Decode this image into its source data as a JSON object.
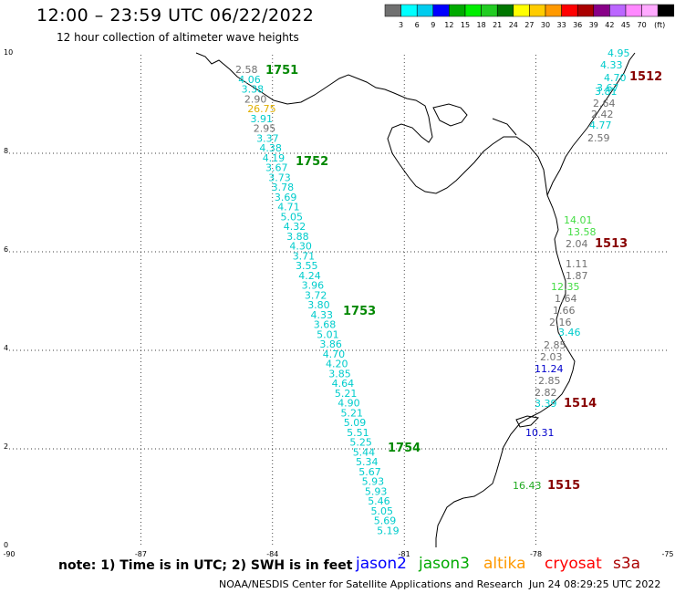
{
  "title": "12:00 – 23:59 UTC 06/22/2022",
  "subtitle": "12 hour collection of altimeter wave heights",
  "legend": {
    "values": [
      "3",
      "6",
      "9",
      "12",
      "15",
      "18",
      "21",
      "24",
      "27",
      "30",
      "33",
      "36",
      "39",
      "42",
      "45",
      "70"
    ],
    "unit": "(ft)",
    "colors": [
      "#707070",
      "#00ffff",
      "#00ccee",
      "#0000ff",
      "#00aa00",
      "#00ee00",
      "#22cc22",
      "#007700",
      "#ffff00",
      "#ffcc00",
      "#ff9900",
      "#ff0000",
      "#aa0000",
      "#880088",
      "#bb66ff",
      "#ff88ff",
      "#ffaaff",
      "#000000"
    ]
  },
  "axes": {
    "x_ticks": [
      "-90",
      "-87",
      "-84",
      "-81",
      "-78",
      "-75"
    ],
    "y_ticks": [
      "10",
      "8",
      "6",
      "4",
      "2",
      "0"
    ]
  },
  "passes": [
    {
      "label": "1751",
      "color": "#008800"
    },
    {
      "label": "1752",
      "color": "#008800"
    },
    {
      "label": "1753",
      "color": "#008800"
    },
    {
      "label": "1754",
      "color": "#008800"
    },
    {
      "label": "1512",
      "color": "#880000"
    },
    {
      "label": "1513",
      "color": "#880000"
    },
    {
      "label": "1514",
      "color": "#880000"
    },
    {
      "label": "1515",
      "color": "#880000"
    }
  ],
  "tracks": {
    "west": [
      {
        "v": "2.58",
        "c": "#707070"
      },
      {
        "v": "4.06",
        "c": "#00cccc"
      },
      {
        "v": "3.38",
        "c": "#00cccc"
      },
      {
        "v": "2.90",
        "c": "#707070"
      },
      {
        "v": "26.75",
        "c": "#e0b000"
      },
      {
        "v": "3.91",
        "c": "#00cccc"
      },
      {
        "v": "2.95",
        "c": "#707070"
      },
      {
        "v": "3.37",
        "c": "#00cccc"
      },
      {
        "v": "4.38",
        "c": "#00cccc"
      },
      {
        "v": "4.19",
        "c": "#00cccc"
      },
      {
        "v": "3.67",
        "c": "#00cccc"
      },
      {
        "v": "3.73",
        "c": "#00cccc"
      },
      {
        "v": "3.78",
        "c": "#00cccc"
      },
      {
        "v": "3.69",
        "c": "#00cccc"
      },
      {
        "v": "4.71",
        "c": "#00cccc"
      },
      {
        "v": "5.05",
        "c": "#00cccc"
      },
      {
        "v": "4.32",
        "c": "#00cccc"
      },
      {
        "v": "3.88",
        "c": "#00cccc"
      },
      {
        "v": "4.30",
        "c": "#00cccc"
      },
      {
        "v": "3.71",
        "c": "#00cccc"
      },
      {
        "v": "3.55",
        "c": "#00cccc"
      },
      {
        "v": "4.24",
        "c": "#00cccc"
      },
      {
        "v": "3.96",
        "c": "#00cccc"
      },
      {
        "v": "3.72",
        "c": "#00cccc"
      },
      {
        "v": "3.80",
        "c": "#00cccc"
      },
      {
        "v": "4.33",
        "c": "#00cccc"
      },
      {
        "v": "3.68",
        "c": "#00cccc"
      },
      {
        "v": "5.01",
        "c": "#00cccc"
      },
      {
        "v": "3.86",
        "c": "#00cccc"
      },
      {
        "v": "4.70",
        "c": "#00cccc"
      },
      {
        "v": "4.20",
        "c": "#00cccc"
      },
      {
        "v": "3.85",
        "c": "#00cccc"
      },
      {
        "v": "4.64",
        "c": "#00cccc"
      },
      {
        "v": "5.21",
        "c": "#00cccc"
      },
      {
        "v": "4.90",
        "c": "#00cccc"
      },
      {
        "v": "5.21",
        "c": "#00cccc"
      },
      {
        "v": "5.09",
        "c": "#00cccc"
      },
      {
        "v": "5.51",
        "c": "#00cccc"
      },
      {
        "v": "5.25",
        "c": "#00cccc"
      },
      {
        "v": "5.44",
        "c": "#00cccc"
      },
      {
        "v": "5.34",
        "c": "#00cccc"
      },
      {
        "v": "5.67",
        "c": "#00cccc"
      },
      {
        "v": "5.93",
        "c": "#00cccc"
      },
      {
        "v": "5.93",
        "c": "#00cccc"
      },
      {
        "v": "5.46",
        "c": "#00cccc"
      },
      {
        "v": "5.05",
        "c": "#00cccc"
      },
      {
        "v": "5.69",
        "c": "#00cccc"
      },
      {
        "v": "5.19",
        "c": "#00cccc"
      }
    ],
    "east_top": [
      {
        "v": "4.95",
        "c": "#00cccc"
      },
      {
        "v": "4.33",
        "c": "#00cccc"
      },
      {
        "v": "4.70",
        "c": "#00cccc"
      },
      {
        "v": "3.67",
        "c": "#00cccc"
      },
      {
        "v": "3.81",
        "c": "#00cccc"
      },
      {
        "v": "2.64",
        "c": "#707070"
      },
      {
        "v": "2.42",
        "c": "#707070"
      },
      {
        "v": "4.77",
        "c": "#00cccc"
      },
      {
        "v": "2.59",
        "c": "#707070"
      }
    ],
    "east_mid": [
      {
        "v": "14.01",
        "c": "#44dd44"
      },
      {
        "v": "13.58",
        "c": "#44dd44"
      },
      {
        "v": "2.04",
        "c": "#707070"
      },
      {
        "v": "1.11",
        "c": "#707070"
      },
      {
        "v": "1.87",
        "c": "#707070"
      },
      {
        "v": "12.35",
        "c": "#44dd44"
      },
      {
        "v": "1.64",
        "c": "#707070"
      },
      {
        "v": "1.66",
        "c": "#707070"
      },
      {
        "v": "2.16",
        "c": "#707070"
      },
      {
        "v": "3.46",
        "c": "#00cccc"
      },
      {
        "v": "2.85",
        "c": "#707070"
      },
      {
        "v": "2.03",
        "c": "#707070"
      },
      {
        "v": "11.24",
        "c": "#0000cc"
      },
      {
        "v": "2.85",
        "c": "#707070"
      },
      {
        "v": "2.82",
        "c": "#707070"
      },
      {
        "v": "3.39",
        "c": "#00cccc"
      },
      {
        "v": "10.31",
        "c": "#0000cc"
      },
      {
        "v": "16.43",
        "c": "#22aa22"
      }
    ]
  },
  "note": "note: 1) Time is in UTC; 2) SWH is in feet",
  "satellites": [
    {
      "name": "jason2",
      "color": "#0000ff"
    },
    {
      "name": "jason3",
      "color": "#00aa00"
    },
    {
      "name": "altika",
      "color": "#ff9900"
    },
    {
      "name": "cryosat",
      "color": "#ff0000"
    },
    {
      "name": "s3a",
      "color": "#aa0000"
    }
  ],
  "footer": "NOAA/NESDIS Center for Satellite Applications and Research",
  "footer_time": "Jun 24 08:29:25 UTC 2022"
}
